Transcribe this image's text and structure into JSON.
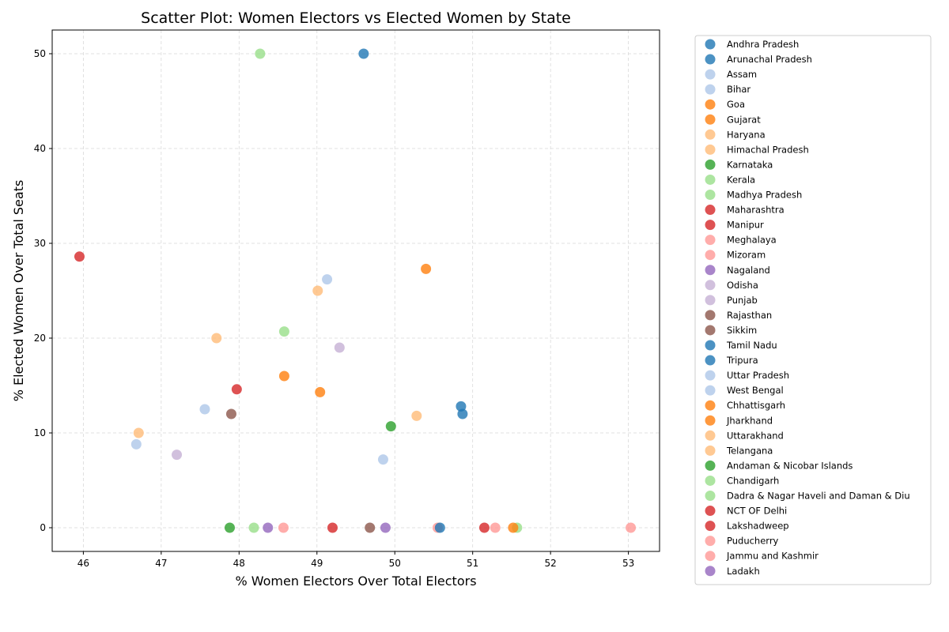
{
  "chart_data": {
    "type": "scatter",
    "title": "Scatter Plot: Women Electors vs Elected Women by State",
    "xlabel": "% Women Electors Over Total Electors",
    "ylabel": "% Elected Women Over Total Seats",
    "xlim": [
      45.6,
      53.4
    ],
    "ylim": [
      -2.5,
      52.5
    ],
    "xticks": [
      46,
      47,
      48,
      49,
      50,
      51,
      52,
      53
    ],
    "yticks": [
      0,
      10,
      20,
      30,
      40,
      50
    ],
    "grid": true,
    "legend_position": "outside-right",
    "series": [
      {
        "name": "Andhra Pradesh",
        "color": "#1f77b4",
        "x": 50.85,
        "y": 12.8
      },
      {
        "name": "Arunachal Pradesh",
        "color": "#1f77b4",
        "x": 49.6,
        "y": 50.0
      },
      {
        "name": "Assam",
        "color": "#aec7e8",
        "x": 49.13,
        "y": 26.2
      },
      {
        "name": "Bihar",
        "color": "#aec7e8",
        "x": 47.56,
        "y": 12.5
      },
      {
        "name": "Goa",
        "color": "#ff7f0e",
        "x": 50.4,
        "y": 27.3
      },
      {
        "name": "Gujarat",
        "color": "#ff7f0e",
        "x": 49.04,
        "y": 14.3
      },
      {
        "name": "Haryana",
        "color": "#ffbb78",
        "x": 46.71,
        "y": 10.0
      },
      {
        "name": "Himachal Pradesh",
        "color": "#ffbb78",
        "x": 49.01,
        "y": 25.0
      },
      {
        "name": "Karnataka",
        "color": "#2ca02c",
        "x": 49.95,
        "y": 10.7
      },
      {
        "name": "Kerala",
        "color": "#98df8a",
        "x": 48.58,
        "y": 20.7
      },
      {
        "name": "Madhya Pradesh",
        "color": "#98df8a",
        "x": 51.57,
        "y": 0.0
      },
      {
        "name": "Maharashtra",
        "color": "#d62728",
        "x": 47.97,
        "y": 14.6
      },
      {
        "name": "Manipur",
        "color": "#d62728",
        "x": 45.95,
        "y": 28.6
      },
      {
        "name": "Meghalaya",
        "color": "#ff9896",
        "x": 50.55,
        "y": 0.0
      },
      {
        "name": "Mizoram",
        "color": "#ff9896",
        "x": 51.29,
        "y": 0.0
      },
      {
        "name": "Nagaland",
        "color": "#9467bd",
        "x": 49.88,
        "y": 0.0
      },
      {
        "name": "Odisha",
        "color": "#c5b0d5",
        "x": 49.29,
        "y": 19.0
      },
      {
        "name": "Punjab",
        "color": "#c5b0d5",
        "x": 47.2,
        "y": 7.7
      },
      {
        "name": "Rajasthan",
        "color": "#8c564b",
        "x": 47.9,
        "y": 12.0
      },
      {
        "name": "Sikkim",
        "color": "#8c564b",
        "x": 49.68,
        "y": 0.0
      },
      {
        "name": "Tamil Nadu",
        "color": "#1f77b4",
        "x": 50.87,
        "y": 12.0
      },
      {
        "name": "Tripura",
        "color": "#1f77b4",
        "x": 50.58,
        "y": 0.0
      },
      {
        "name": "Uttar Pradesh",
        "color": "#aec7e8",
        "x": 46.68,
        "y": 8.8
      },
      {
        "name": "West Bengal",
        "color": "#aec7e8",
        "x": 49.85,
        "y": 7.2
      },
      {
        "name": "Chhattisgarh",
        "color": "#ff7f0e",
        "x": 48.58,
        "y": 16.0
      },
      {
        "name": "Jharkhand",
        "color": "#ff7f0e",
        "x": 51.52,
        "y": 0.0
      },
      {
        "name": "Uttarakhand",
        "color": "#ffbb78",
        "x": 47.71,
        "y": 20.0
      },
      {
        "name": "Telangana",
        "color": "#ffbb78",
        "x": 50.28,
        "y": 11.8
      },
      {
        "name": "Andaman & Nicobar Islands",
        "color": "#2ca02c",
        "x": 47.88,
        "y": 0.0
      },
      {
        "name": "Chandigarh",
        "color": "#98df8a",
        "x": 48.27,
        "y": 50.0
      },
      {
        "name": "Dadra & Nagar Haveli and Daman & Diu",
        "color": "#98df8a",
        "x": 48.19,
        "y": 0.0
      },
      {
        "name": "NCT OF Delhi",
        "color": "#d62728",
        "x": 49.2,
        "y": 0.0
      },
      {
        "name": "Lakshadweep",
        "color": "#d62728",
        "x": 51.15,
        "y": 0.0
      },
      {
        "name": "Puducherry",
        "color": "#ff9896",
        "x": 53.03,
        "y": 0.0
      },
      {
        "name": "Jammu and Kashmir",
        "color": "#ff9896",
        "x": 48.57,
        "y": 0.0
      },
      {
        "name": "Ladakh",
        "color": "#9467bd",
        "x": 48.37,
        "y": 0.0
      }
    ]
  }
}
